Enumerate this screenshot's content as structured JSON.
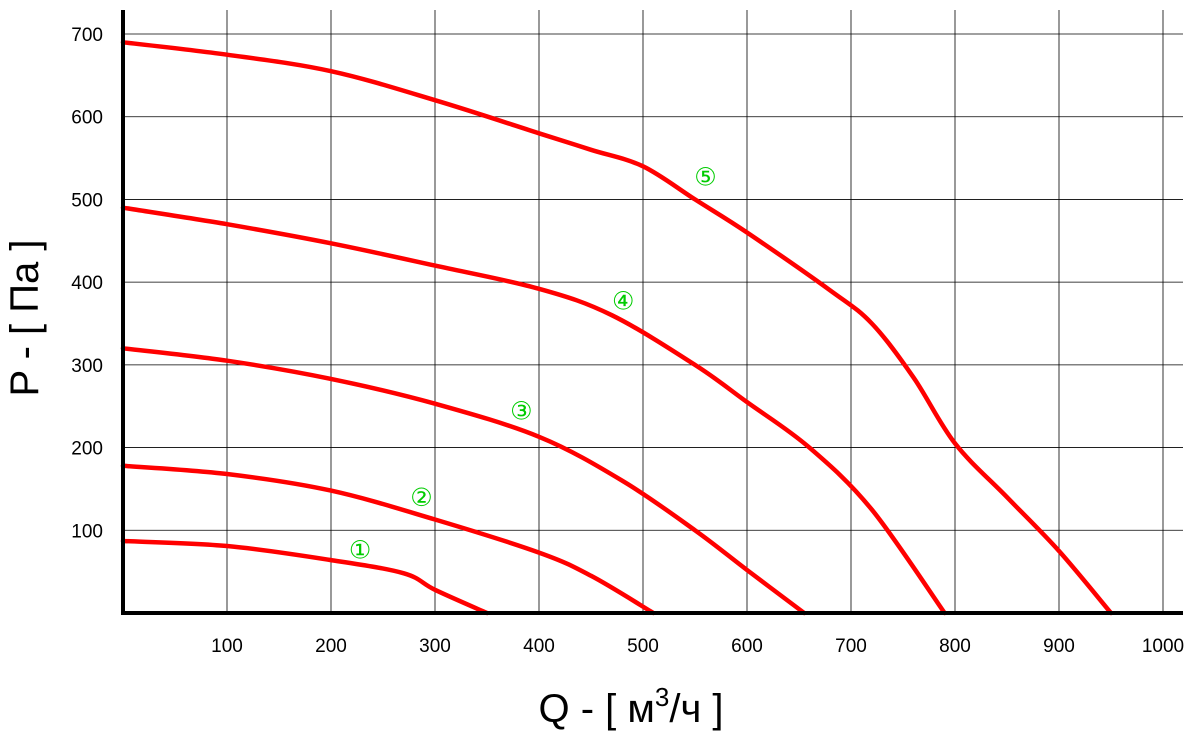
{
  "chart_data": {
    "type": "line",
    "title": "",
    "xlabel": {
      "prefix": "Q - [ м",
      "sup": "3",
      "suffix": "/ч ]"
    },
    "ylabel": "P - [ Па ]",
    "xlim": [
      0,
      1000
    ],
    "ylim": [
      0,
      700
    ],
    "x_ticks": [
      100,
      200,
      300,
      400,
      500,
      600,
      700,
      800,
      900,
      1000
    ],
    "y_ticks": [
      100,
      200,
      300,
      400,
      500,
      600,
      700
    ],
    "grid": true,
    "colors": {
      "curve": "#ff0000",
      "label": "#00cc00",
      "grid": "#000000",
      "axis": "#000000"
    },
    "series": [
      {
        "label": "①",
        "label_at": [
          228,
          77
        ],
        "points": [
          [
            0,
            87
          ],
          [
            100,
            81
          ],
          [
            200,
            64
          ],
          [
            270,
            48
          ],
          [
            300,
            28
          ],
          [
            350,
            0
          ]
        ]
      },
      {
        "label": "②",
        "label_at": [
          287,
          140
        ],
        "points": [
          [
            0,
            178
          ],
          [
            100,
            168
          ],
          [
            200,
            148
          ],
          [
            300,
            113
          ],
          [
            400,
            73
          ],
          [
            450,
            45
          ],
          [
            510,
            0
          ]
        ]
      },
      {
        "label": "③",
        "label_at": [
          383,
          245
        ],
        "points": [
          [
            0,
            320
          ],
          [
            100,
            305
          ],
          [
            200,
            283
          ],
          [
            300,
            253
          ],
          [
            400,
            213
          ],
          [
            480,
            160
          ],
          [
            550,
            100
          ],
          [
            600,
            52
          ],
          [
            655,
            0
          ]
        ]
      },
      {
        "label": "④",
        "label_at": [
          481,
          378
        ],
        "points": [
          [
            0,
            490
          ],
          [
            100,
            470
          ],
          [
            200,
            447
          ],
          [
            300,
            420
          ],
          [
            400,
            392
          ],
          [
            470,
            360
          ],
          [
            550,
            300
          ],
          [
            600,
            255
          ],
          [
            660,
            200
          ],
          [
            720,
            125
          ],
          [
            790,
            0
          ]
        ]
      },
      {
        "label": "⑤",
        "label_at": [
          560,
          528
        ],
        "points": [
          [
            0,
            690
          ],
          [
            100,
            675
          ],
          [
            200,
            655
          ],
          [
            300,
            620
          ],
          [
            400,
            580
          ],
          [
            450,
            560
          ],
          [
            500,
            540
          ],
          [
            550,
            500
          ],
          [
            600,
            460
          ],
          [
            680,
            390
          ],
          [
            720,
            350
          ],
          [
            760,
            285
          ],
          [
            800,
            205
          ],
          [
            850,
            140
          ],
          [
            900,
            75
          ],
          [
            950,
            0
          ]
        ]
      }
    ]
  }
}
